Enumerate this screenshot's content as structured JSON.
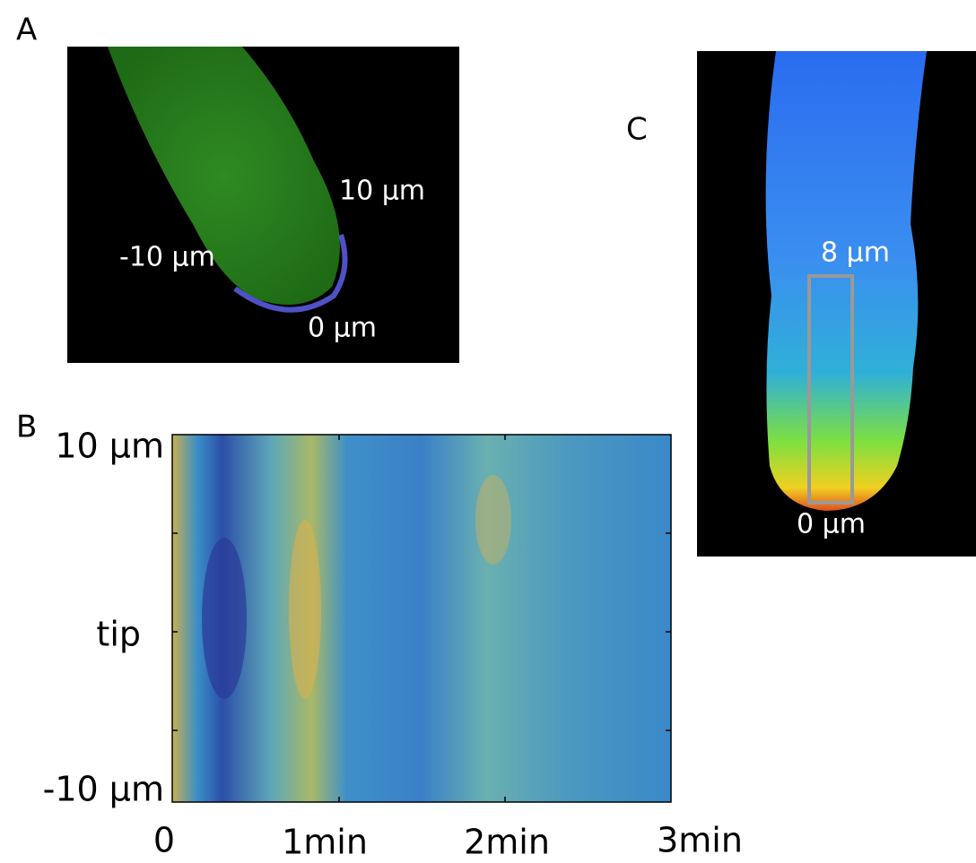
{
  "panels": {
    "a": {
      "label": "A",
      "annotations": [
        "10 µm",
        "-10 µm",
        "0 µm"
      ]
    },
    "b": {
      "label": "B",
      "y_labels": [
        "10 µm",
        "tip",
        "-10 µm"
      ],
      "x_labels": [
        "0",
        "1min",
        "2min",
        "3min"
      ]
    },
    "c": {
      "label": "C",
      "annotations": [
        "8 µm",
        "0 µm"
      ]
    }
  }
}
